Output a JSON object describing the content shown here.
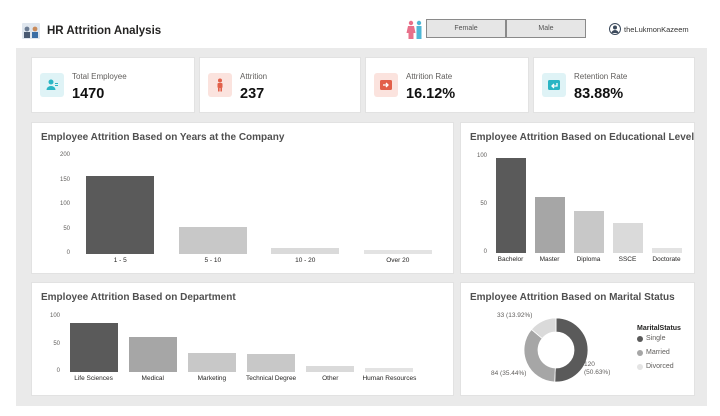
{
  "header": {
    "title": "HR Attrition Analysis",
    "slicer": {
      "options": [
        "Female",
        "Male"
      ]
    },
    "user": "theLukmonKazeem"
  },
  "kpis": [
    {
      "label": "Total Employee",
      "value": "1470",
      "icon": "employee-icon",
      "color": "#2bb5c4"
    },
    {
      "label": "Attrition",
      "value": "237",
      "icon": "person-exit-icon",
      "color": "#e2604a"
    },
    {
      "label": "Attrition Rate",
      "value": "16.12%",
      "icon": "exit-arrow-icon",
      "color": "#e2604a"
    },
    {
      "label": "Retention Rate",
      "value": "83.88%",
      "icon": "return-arrow-icon",
      "color": "#2bb5c4"
    }
  ],
  "charts": {
    "years": {
      "title": "Employee Attrition Based on Years at the Company",
      "yticks": [
        "200",
        "150",
        "100",
        "50",
        "0"
      ]
    },
    "education": {
      "title": "Employee Attrition Based on Educational Level",
      "yticks": [
        "100",
        "50",
        "0"
      ]
    },
    "department": {
      "title": "Employee Attrition Based on Department",
      "yticks": [
        "100",
        "50",
        "0"
      ]
    },
    "marital": {
      "title": "Employee Attrition Based on Marital Status",
      "legend_title": "MaritalStatus",
      "labels": [
        "120 (50.63%)",
        "84 (35.44%)",
        "33 (13.92%)"
      ]
    }
  },
  "chart_data": [
    {
      "type": "bar",
      "title": "Employee Attrition Based on Years at the Company",
      "categories": [
        "1 - 5",
        "5 - 10",
        "10 - 20",
        "Over 20"
      ],
      "values": [
        160,
        56,
        12,
        8
      ],
      "ylim": [
        0,
        200
      ],
      "grid": false
    },
    {
      "type": "bar",
      "title": "Employee Attrition Based on Educational Level",
      "categories": [
        "Bachelor",
        "Master",
        "Diploma",
        "SSCE",
        "Doctorate"
      ],
      "values": [
        99,
        58,
        44,
        31,
        5
      ],
      "ylim": [
        0,
        100
      ],
      "grid": false
    },
    {
      "type": "bar",
      "title": "Employee Attrition Based on Department",
      "categories": [
        "Life Sciences",
        "Medical",
        "Marketing",
        "Technical Degree",
        "Other",
        "Human Resources"
      ],
      "values": [
        89,
        63,
        35,
        32,
        11,
        7
      ],
      "ylim": [
        0,
        100
      ],
      "grid": false
    },
    {
      "type": "pie",
      "title": "Employee Attrition Based on Marital Status",
      "categories": [
        "Single",
        "Married",
        "Divorced"
      ],
      "values": [
        120,
        84,
        33
      ],
      "colors": [
        "#5a5a5a",
        "#a6a6a6",
        "#dadada"
      ],
      "legend": "right"
    }
  ]
}
